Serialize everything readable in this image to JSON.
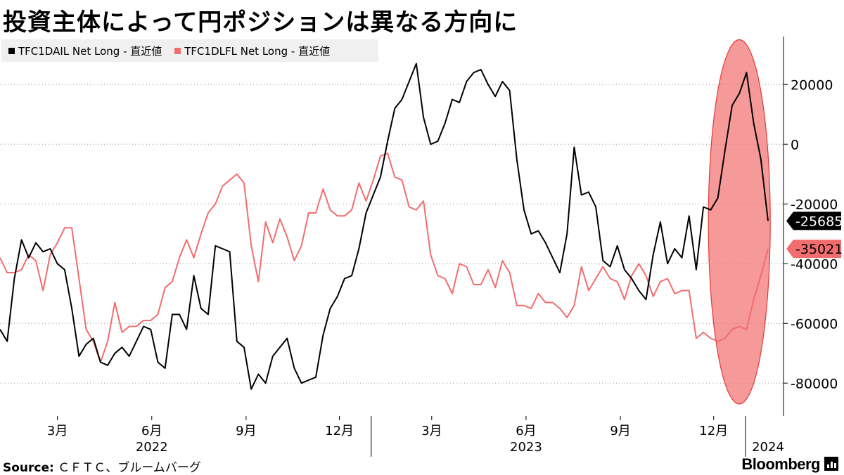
{
  "title": "投資主体によって円ポジションは異なる方向に",
  "source_label": "Source:",
  "source_text": "ＣＦＴＣ、ブルームバーグ",
  "brand": "Bloomberg",
  "chart_data": {
    "type": "line",
    "ylim": [
      -91000,
      37000
    ],
    "yticks": [
      20000,
      0,
      -20000,
      -40000,
      -60000,
      -80000
    ],
    "ytick_labels": [
      "20000",
      "0",
      "-20000",
      "-40000",
      "-60000",
      "-80000"
    ],
    "x_range": [
      "2022-01-04",
      "2024-01-23"
    ],
    "x_ticks": [
      {
        "date": "2022-03-01",
        "label": "3月"
      },
      {
        "date": "2022-06-01",
        "label": "6月"
      },
      {
        "date": "2022-09-01",
        "label": "9月"
      },
      {
        "date": "2022-12-01",
        "label": "12月"
      },
      {
        "date": "2023-03-01",
        "label": "3月"
      },
      {
        "date": "2023-06-01",
        "label": "6月"
      },
      {
        "date": "2023-09-01",
        "label": "9月"
      },
      {
        "date": "2023-12-01",
        "label": "12月"
      }
    ],
    "year_labels": [
      {
        "date": "2022-06-01",
        "label": "2022"
      },
      {
        "date": "2023-06-01",
        "label": "2023"
      },
      {
        "date": "2024-01-23",
        "label": "2024"
      }
    ],
    "year_separators": [
      "2022-01-01",
      "2023-01-01",
      "2024-01-01"
    ],
    "series": [
      {
        "name": "TFC1DAIL Net Long - 直近値",
        "color": "#000000",
        "last_label": "-25685",
        "dates": [
          "2022-01-04",
          "2022-01-11",
          "2022-01-18",
          "2022-01-25",
          "2022-02-01",
          "2022-02-08",
          "2022-02-15",
          "2022-02-22",
          "2022-03-01",
          "2022-03-08",
          "2022-03-15",
          "2022-03-22",
          "2022-03-29",
          "2022-04-05",
          "2022-04-12",
          "2022-04-19",
          "2022-04-26",
          "2022-05-03",
          "2022-05-10",
          "2022-05-17",
          "2022-05-24",
          "2022-05-31",
          "2022-06-07",
          "2022-06-14",
          "2022-06-21",
          "2022-06-28",
          "2022-07-05",
          "2022-07-12",
          "2022-07-19",
          "2022-07-26",
          "2022-08-02",
          "2022-08-09",
          "2022-08-16",
          "2022-08-23",
          "2022-08-30",
          "2022-09-06",
          "2022-09-13",
          "2022-09-20",
          "2022-09-27",
          "2022-10-04",
          "2022-10-11",
          "2022-10-18",
          "2022-10-25",
          "2022-11-01",
          "2022-11-08",
          "2022-11-15",
          "2022-11-22",
          "2022-11-29",
          "2022-12-06",
          "2022-12-13",
          "2022-12-20",
          "2022-12-27",
          "2023-01-03",
          "2023-01-10",
          "2023-01-17",
          "2023-01-24",
          "2023-01-31",
          "2023-02-07",
          "2023-02-14",
          "2023-02-21",
          "2023-02-28",
          "2023-03-07",
          "2023-03-14",
          "2023-03-21",
          "2023-03-28",
          "2023-04-04",
          "2023-04-11",
          "2023-04-18",
          "2023-04-25",
          "2023-05-02",
          "2023-05-09",
          "2023-05-16",
          "2023-05-23",
          "2023-05-30",
          "2023-06-06",
          "2023-06-13",
          "2023-06-20",
          "2023-06-27",
          "2023-07-04",
          "2023-07-11",
          "2023-07-18",
          "2023-07-25",
          "2023-08-01",
          "2023-08-08",
          "2023-08-15",
          "2023-08-22",
          "2023-08-29",
          "2023-09-05",
          "2023-09-12",
          "2023-09-19",
          "2023-09-26",
          "2023-10-03",
          "2023-10-10",
          "2023-10-17",
          "2023-10-24",
          "2023-10-31",
          "2023-11-07",
          "2023-11-14",
          "2023-11-21",
          "2023-11-28",
          "2023-12-05",
          "2023-12-12",
          "2023-12-19",
          "2023-12-26",
          "2024-01-02",
          "2024-01-09",
          "2024-01-16",
          "2024-01-23"
        ],
        "values": [
          -62000,
          -66000,
          -45000,
          -32000,
          -38000,
          -33000,
          -36000,
          -35000,
          -40000,
          -42000,
          -55000,
          -71000,
          -67000,
          -65000,
          -73000,
          -74000,
          -70000,
          -68000,
          -71000,
          -66000,
          -61000,
          -62000,
          -73000,
          -75000,
          -57000,
          -57000,
          -62000,
          -44000,
          -55000,
          -57000,
          -34000,
          -35000,
          -36000,
          -66000,
          -68000,
          -82000,
          -77000,
          -80000,
          -71000,
          -68000,
          -65000,
          -75000,
          -80000,
          -79000,
          -78000,
          -64000,
          -55000,
          -51000,
          -45000,
          -44000,
          -35000,
          -23000,
          -17000,
          -11000,
          1000,
          12000,
          15000,
          21000,
          27000,
          9000,
          0,
          1000,
          7000,
          15000,
          14000,
          21000,
          24000,
          25000,
          20000,
          16000,
          21000,
          18000,
          -5000,
          -22000,
          -30000,
          -29000,
          -33000,
          -38000,
          -43000,
          -30000,
          -1000,
          -17000,
          -16000,
          -21000,
          -39000,
          -41000,
          -34000,
          -42000,
          -45000,
          -49000,
          -52000,
          -37000,
          -26000,
          -40000,
          -35000,
          -38000,
          -24000,
          -42000,
          -21000,
          -22000,
          -18000,
          -2000,
          13000,
          17000,
          24000,
          7000,
          -5000,
          -25685
        ]
      },
      {
        "name": "TFC1DLFL Net Long - 直近値",
        "color": "#f26d6d",
        "last_label": "-35021",
        "dates": [
          "2022-01-04",
          "2022-01-11",
          "2022-01-18",
          "2022-01-25",
          "2022-02-01",
          "2022-02-08",
          "2022-02-15",
          "2022-02-22",
          "2022-03-01",
          "2022-03-08",
          "2022-03-15",
          "2022-03-22",
          "2022-03-29",
          "2022-04-05",
          "2022-04-12",
          "2022-04-19",
          "2022-04-26",
          "2022-05-03",
          "2022-05-10",
          "2022-05-17",
          "2022-05-24",
          "2022-05-31",
          "2022-06-07",
          "2022-06-14",
          "2022-06-21",
          "2022-06-28",
          "2022-07-05",
          "2022-07-12",
          "2022-07-19",
          "2022-07-26",
          "2022-08-02",
          "2022-08-09",
          "2022-08-16",
          "2022-08-23",
          "2022-08-30",
          "2022-09-06",
          "2022-09-13",
          "2022-09-20",
          "2022-09-27",
          "2022-10-04",
          "2022-10-11",
          "2022-10-18",
          "2022-10-25",
          "2022-11-01",
          "2022-11-08",
          "2022-11-15",
          "2022-11-22",
          "2022-11-29",
          "2022-12-06",
          "2022-12-13",
          "2022-12-20",
          "2022-12-27",
          "2023-01-03",
          "2023-01-10",
          "2023-01-17",
          "2023-01-24",
          "2023-01-31",
          "2023-02-07",
          "2023-02-14",
          "2023-02-21",
          "2023-02-28",
          "2023-03-07",
          "2023-03-14",
          "2023-03-21",
          "2023-03-28",
          "2023-04-04",
          "2023-04-11",
          "2023-04-18",
          "2023-04-25",
          "2023-05-02",
          "2023-05-09",
          "2023-05-16",
          "2023-05-23",
          "2023-05-30",
          "2023-06-06",
          "2023-06-13",
          "2023-06-20",
          "2023-06-27",
          "2023-07-04",
          "2023-07-11",
          "2023-07-18",
          "2023-07-25",
          "2023-08-01",
          "2023-08-08",
          "2023-08-15",
          "2023-08-22",
          "2023-08-29",
          "2023-09-05",
          "2023-09-12",
          "2023-09-19",
          "2023-09-26",
          "2023-10-03",
          "2023-10-10",
          "2023-10-17",
          "2023-10-24",
          "2023-10-31",
          "2023-11-07",
          "2023-11-14",
          "2023-11-21",
          "2023-11-28",
          "2023-12-05",
          "2023-12-12",
          "2023-12-19",
          "2023-12-26",
          "2024-01-02",
          "2024-01-09",
          "2024-01-16",
          "2024-01-23"
        ],
        "values": [
          -38000,
          -43000,
          -43000,
          -42000,
          -37000,
          -39000,
          -49000,
          -37000,
          -33000,
          -28000,
          -28000,
          -45000,
          -62000,
          -66000,
          -73000,
          -66000,
          -53000,
          -63000,
          -61000,
          -61000,
          -59000,
          -59000,
          -57000,
          -48000,
          -46000,
          -38000,
          -32000,
          -38000,
          -30000,
          -23000,
          -20000,
          -14000,
          -12000,
          -10000,
          -13000,
          -34000,
          -46000,
          -26000,
          -33000,
          -25000,
          -31000,
          -39000,
          -34000,
          -23000,
          -23000,
          -15000,
          -22000,
          -24000,
          -24000,
          -22000,
          -13000,
          -19000,
          -12000,
          -4000,
          -3000,
          -11000,
          -12000,
          -21000,
          -22000,
          -19000,
          -37000,
          -44000,
          -45000,
          -50000,
          -40000,
          -41000,
          -47000,
          -47000,
          -42000,
          -48000,
          -39000,
          -43000,
          -54000,
          -54000,
          -55000,
          -50000,
          -53000,
          -53000,
          -55000,
          -58000,
          -54000,
          -41000,
          -49000,
          -45000,
          -41000,
          -45000,
          -46000,
          -52000,
          -44000,
          -40000,
          -44000,
          -51000,
          -46000,
          -45000,
          -50000,
          -49000,
          -49000,
          -65000,
          -63000,
          -65000,
          -66000,
          -65000,
          -62000,
          -61000,
          -62000,
          -52000,
          -44000,
          -35021
        ]
      }
    ],
    "annotation": {
      "type": "ellipse",
      "color": "#f26d6d",
      "x_center": "2023-12-26",
      "y_center": -26000,
      "y_extent": [
        -87000,
        35000
      ]
    }
  }
}
